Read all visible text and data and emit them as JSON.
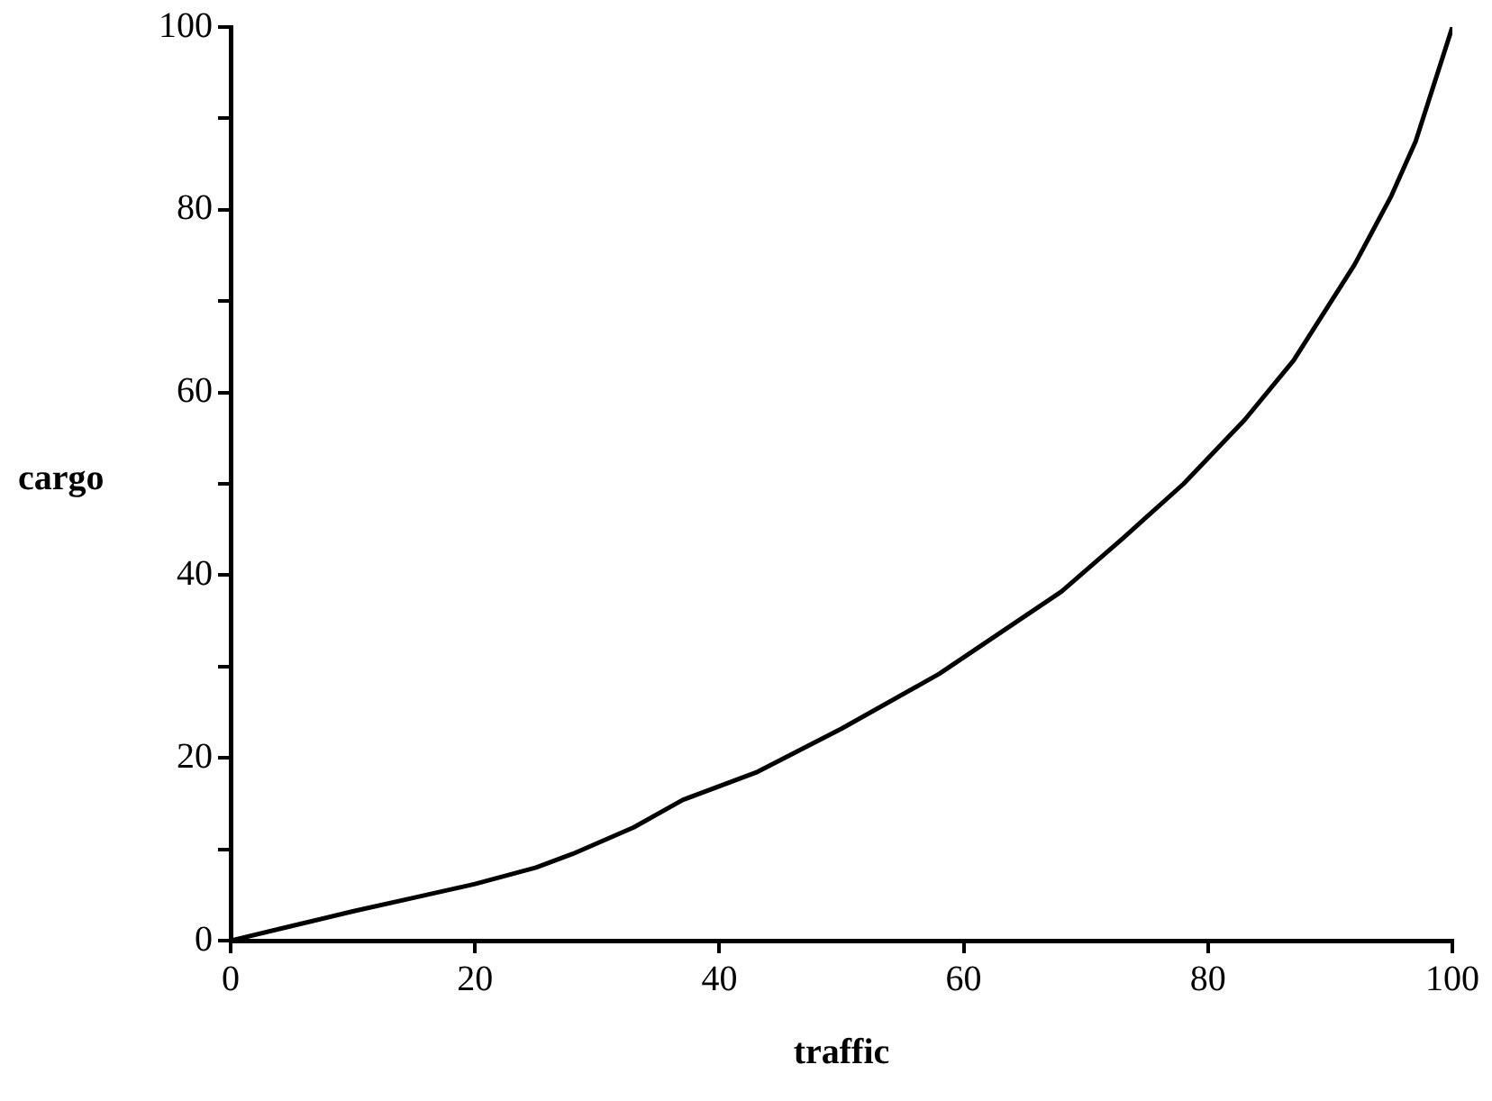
{
  "chart_data": {
    "type": "line",
    "xlabel": "traffic",
    "ylabel": "cargo",
    "x": [
      0,
      5,
      10,
      15,
      20,
      25,
      28,
      33,
      37,
      43,
      50,
      58,
      64,
      68,
      73,
      78,
      83,
      87,
      92,
      95,
      97,
      100
    ],
    "series": [
      {
        "color": "#000000",
        "values": [
          0,
          1.6,
          3.2,
          4.7,
          6.2,
          8,
          9.5,
          12.4,
          15.4,
          18.4,
          23.2,
          29.2,
          34.6,
          38.2,
          44,
          50,
          57,
          63.5,
          74,
          81.5,
          87.5,
          100
        ]
      }
    ],
    "xlim": [
      0,
      100
    ],
    "xticks": [
      0,
      20,
      40,
      60,
      80,
      100
    ],
    "ylim": [
      0,
      100
    ],
    "yticks": [
      0,
      {
        "value": 10,
        "label": null
      },
      20,
      {
        "value": 30,
        "label": null
      },
      40,
      {
        "value": 50,
        "label": null
      },
      60,
      {
        "value": 70,
        "label": null
      },
      80,
      {
        "value": 90,
        "label": null
      },
      100
    ],
    "grid": false,
    "legend": false,
    "marker": "none",
    "line_style": "solid"
  }
}
